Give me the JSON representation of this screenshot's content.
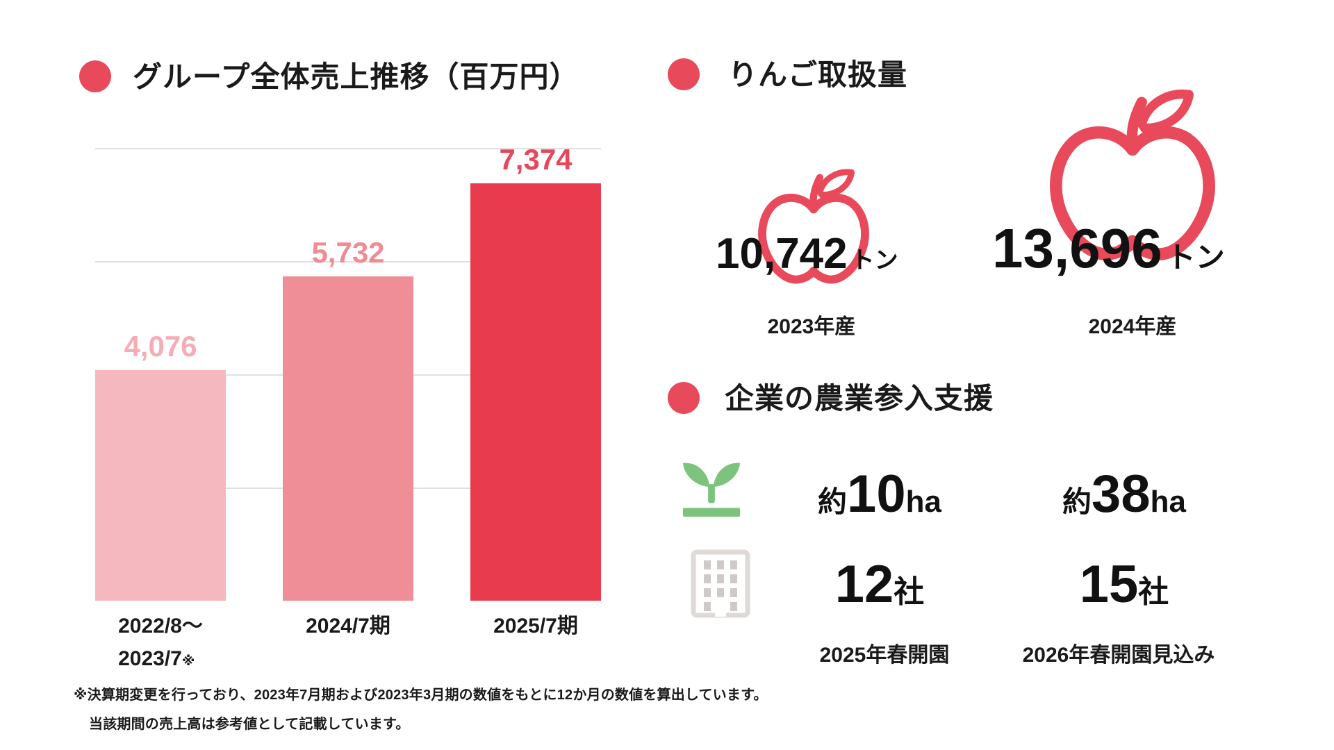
{
  "colors": {
    "accent_red": "#E8495B",
    "bar_light": "#F5B8BE",
    "bar_medium": "#F08E97",
    "bar_dark": "#E83C4E",
    "sprout_green": "#7CC47D",
    "building_gray": "#DFDAD8",
    "building_window_gray": "#CFC9C7",
    "grid_gray": "#E0E0E0",
    "text_black": "#1A1A1A"
  },
  "sales_section": {
    "title": "グループ全体売上推移（百万円）"
  },
  "chart_data": {
    "type": "bar",
    "title": "グループ全体売上推移（百万円）",
    "unit": "百万円",
    "categories": [
      {
        "line1": "2022/8〜",
        "line2": "2023/7",
        "note": "※"
      },
      {
        "line1": "2024/7期",
        "line2": "",
        "note": ""
      },
      {
        "line1": "2025/7期",
        "line2": "",
        "note": ""
      }
    ],
    "values": [
      4076,
      5732,
      7374
    ],
    "value_labels": [
      "4,076",
      "5,732",
      "7,374"
    ],
    "ylim": [
      0,
      8000
    ],
    "gridlines": [
      2000,
      4000,
      6000,
      8000
    ],
    "grid_on": true,
    "legend": "none",
    "bar_colors": [
      "#F5B8BE",
      "#F08E97",
      "#E83C4E"
    ],
    "value_label_colors": [
      "#F5ACB5",
      "#F08B94",
      "#E8465A"
    ]
  },
  "apple_section": {
    "title": "りんご取扱量",
    "items": [
      {
        "value": "10,742",
        "unit": "トン",
        "year_label": "2023年産",
        "apple_size": "small"
      },
      {
        "value": "13,696",
        "unit": "トン",
        "year_label": "2024年産",
        "apple_size": "large"
      }
    ]
  },
  "farm_section": {
    "title": "企業の農業参入支援",
    "area_row": {
      "items": [
        {
          "prefix": "約",
          "value": "10",
          "unit": "ha"
        },
        {
          "prefix": "約",
          "value": "38",
          "unit": "ha"
        }
      ]
    },
    "company_row": {
      "items": [
        {
          "value": "12",
          "unit": "社"
        },
        {
          "value": "15",
          "unit": "社"
        }
      ]
    },
    "column_labels": [
      "2025年春開園",
      "2026年春開園見込み"
    ]
  },
  "footnote": {
    "line1": "※決算期変更を行っており、2023年7月期および2023年3月期の数値をもとに12か月の数値を算出しています。",
    "line2": "当該期間の売上高は参考値として記載しています。"
  }
}
